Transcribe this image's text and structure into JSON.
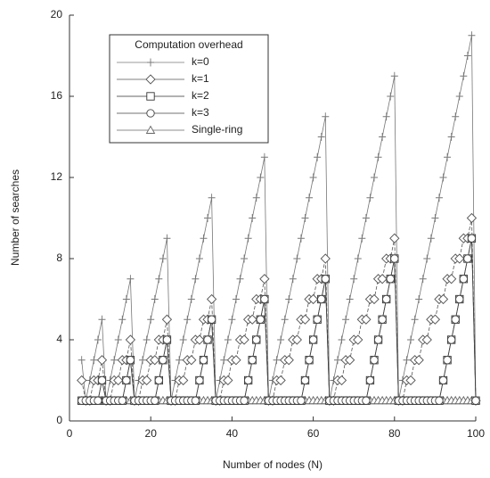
{
  "chart_data": {
    "type": "line",
    "xlabel": "Number of nodes (N)",
    "ylabel": "Number of searches",
    "legend_title": "Computation overhead",
    "legend_position": "upper left",
    "xlim": [
      0,
      100
    ],
    "xticks": [
      0,
      20,
      40,
      60,
      80,
      100
    ],
    "ylim": [
      0,
      20
    ],
    "yticks": [
      0,
      4,
      8,
      12,
      16,
      20
    ],
    "x": [
      3,
      4,
      5,
      6,
      7,
      8,
      9,
      10,
      11,
      12,
      13,
      14,
      15,
      16,
      17,
      18,
      19,
      20,
      21,
      22,
      23,
      24,
      25,
      26,
      27,
      28,
      29,
      30,
      31,
      32,
      33,
      34,
      35,
      36,
      37,
      38,
      39,
      40,
      41,
      42,
      43,
      44,
      45,
      46,
      47,
      48,
      49,
      50,
      51,
      52,
      53,
      54,
      55,
      56,
      57,
      58,
      59,
      60,
      61,
      62,
      63,
      64,
      65,
      66,
      67,
      68,
      69,
      70,
      71,
      72,
      73,
      74,
      75,
      76,
      77,
      78,
      79,
      80,
      81,
      82,
      83,
      84,
      85,
      86,
      87,
      88,
      89,
      90,
      91,
      92,
      93,
      94,
      95,
      96,
      97,
      98,
      99,
      100
    ],
    "series": [
      {
        "name": "k=0",
        "color": "#777777",
        "marker": "plus",
        "values": [
          3,
          1,
          2,
          3,
          4,
          5,
          1,
          2,
          3,
          4,
          5,
          6,
          7,
          1,
          2,
          3,
          4,
          5,
          6,
          7,
          8,
          9,
          1,
          2,
          3,
          4,
          5,
          6,
          7,
          8,
          9,
          10,
          11,
          1,
          2,
          3,
          4,
          5,
          6,
          7,
          8,
          9,
          10,
          11,
          12,
          13,
          1,
          2,
          3,
          4,
          5,
          6,
          7,
          8,
          9,
          10,
          11,
          12,
          13,
          14,
          15,
          1,
          2,
          3,
          4,
          5,
          6,
          7,
          8,
          9,
          10,
          11,
          12,
          13,
          14,
          15,
          16,
          17,
          1,
          2,
          3,
          4,
          5,
          6,
          7,
          8,
          9,
          10,
          11,
          12,
          13,
          14,
          15,
          16,
          17,
          18,
          19,
          1
        ]
      },
      {
        "name": "k=1",
        "color": "#555555",
        "marker": "diamond",
        "values": [
          2,
          1,
          1,
          2,
          2,
          3,
          1,
          1,
          2,
          2,
          3,
          3,
          4,
          1,
          1,
          2,
          2,
          3,
          3,
          4,
          4,
          5,
          1,
          1,
          2,
          2,
          3,
          3,
          4,
          4,
          5,
          5,
          6,
          1,
          1,
          2,
          2,
          3,
          3,
          4,
          4,
          5,
          5,
          6,
          6,
          7,
          1,
          1,
          2,
          2,
          3,
          3,
          4,
          4,
          5,
          5,
          6,
          6,
          7,
          7,
          8,
          1,
          1,
          2,
          2,
          3,
          3,
          4,
          4,
          5,
          5,
          6,
          6,
          7,
          7,
          8,
          8,
          9,
          1,
          1,
          2,
          2,
          3,
          3,
          4,
          4,
          5,
          5,
          6,
          6,
          7,
          7,
          8,
          8,
          9,
          9,
          10,
          1
        ]
      },
      {
        "name": "k=2",
        "color": "#333333",
        "marker": "square",
        "values": [
          1,
          1,
          1,
          1,
          1,
          2,
          1,
          1,
          1,
          1,
          1,
          2,
          3,
          1,
          1,
          1,
          1,
          1,
          1,
          2,
          3,
          4,
          1,
          1,
          1,
          1,
          1,
          1,
          1,
          2,
          3,
          4,
          5,
          1,
          1,
          1,
          1,
          1,
          1,
          1,
          1,
          2,
          3,
          4,
          5,
          6,
          1,
          1,
          1,
          1,
          1,
          1,
          1,
          1,
          1,
          2,
          3,
          4,
          5,
          6,
          7,
          1,
          1,
          1,
          1,
          1,
          1,
          1,
          1,
          1,
          1,
          2,
          3,
          4,
          5,
          6,
          7,
          8,
          1,
          1,
          1,
          1,
          1,
          1,
          1,
          1,
          1,
          1,
          1,
          2,
          3,
          4,
          5,
          6,
          7,
          8,
          9,
          1
        ]
      },
      {
        "name": "k=3",
        "color": "#444444",
        "marker": "circle",
        "values": [
          1,
          1,
          1,
          1,
          1,
          2,
          1,
          1,
          1,
          1,
          1,
          2,
          3,
          1,
          1,
          1,
          1,
          1,
          1,
          2,
          3,
          4,
          1,
          1,
          1,
          1,
          1,
          1,
          1,
          2,
          3,
          4,
          5,
          1,
          1,
          1,
          1,
          1,
          1,
          1,
          1,
          2,
          3,
          4,
          5,
          6,
          1,
          1,
          1,
          1,
          1,
          1,
          1,
          1,
          1,
          2,
          3,
          4,
          5,
          6,
          7,
          1,
          1,
          1,
          1,
          1,
          1,
          1,
          1,
          1,
          1,
          2,
          3,
          4,
          5,
          6,
          7,
          8,
          1,
          1,
          1,
          1,
          1,
          1,
          1,
          1,
          1,
          1,
          1,
          2,
          3,
          4,
          5,
          6,
          7,
          8,
          9,
          1
        ]
      },
      {
        "name": "Single-ring",
        "color": "#666666",
        "marker": "triangle",
        "values": [
          1,
          1,
          1,
          1,
          1,
          1,
          1,
          1,
          1,
          1,
          1,
          1,
          1,
          1,
          1,
          1,
          1,
          1,
          1,
          1,
          1,
          1,
          1,
          1,
          1,
          1,
          1,
          1,
          1,
          1,
          1,
          1,
          1,
          1,
          1,
          1,
          1,
          1,
          1,
          1,
          1,
          1,
          1,
          1,
          1,
          1,
          1,
          1,
          1,
          1,
          1,
          1,
          1,
          1,
          1,
          1,
          1,
          1,
          1,
          1,
          1,
          1,
          1,
          1,
          1,
          1,
          1,
          1,
          1,
          1,
          1,
          1,
          1,
          1,
          1,
          1,
          1,
          1,
          1,
          1,
          1,
          1,
          1,
          1,
          1,
          1,
          1,
          1,
          1,
          1,
          1,
          1,
          1,
          1,
          1,
          1,
          1,
          1
        ]
      }
    ]
  }
}
